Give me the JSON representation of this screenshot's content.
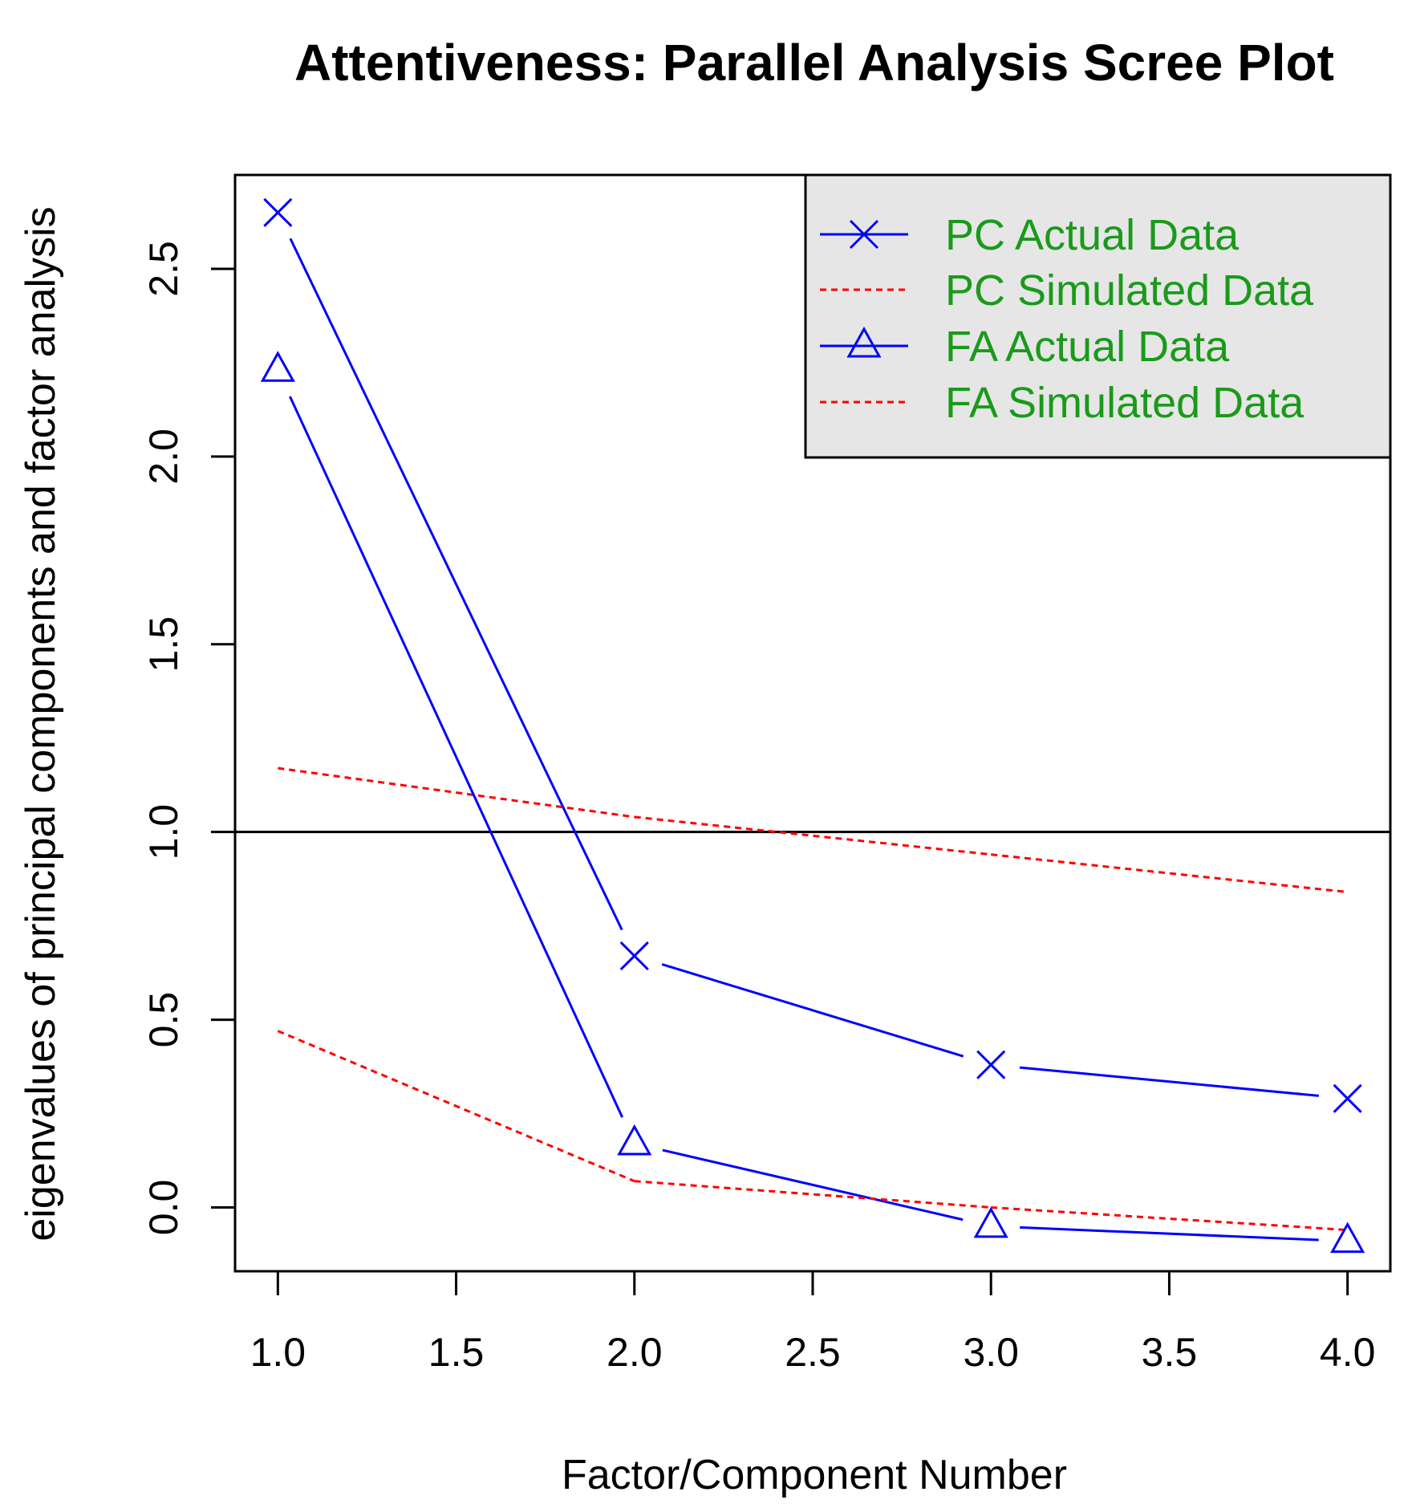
{
  "chart_data": {
    "type": "line",
    "title": "Attentiveness: Parallel Analysis Scree Plot",
    "xlabel": "Factor/Component Number",
    "ylabel": "eigenvalues of principal components and factor analysis",
    "xlim": [
      0.88,
      4.12
    ],
    "ylim": [
      -0.17,
      2.75
    ],
    "x_ticks": [
      1.0,
      1.5,
      2.0,
      2.5,
      3.0,
      3.5,
      4.0
    ],
    "x_tick_labels": [
      "1.0",
      "1.5",
      "2.0",
      "2.5",
      "3.0",
      "3.5",
      "4.0"
    ],
    "y_ticks": [
      0.0,
      0.5,
      1.0,
      1.5,
      2.0,
      2.5
    ],
    "y_tick_labels": [
      "0.0",
      "0.5",
      "1.0",
      "1.5",
      "2.0",
      "2.5"
    ],
    "reference_line": 1.0,
    "x": [
      1,
      2,
      3,
      4
    ],
    "series": [
      {
        "name": "PC Actual Data",
        "legend_label": "PC  Actual Data",
        "values": [
          2.65,
          0.67,
          0.38,
          0.29
        ],
        "color": "#0000ff",
        "style": "solid",
        "marker": "x"
      },
      {
        "name": "PC Simulated Data",
        "legend_label": " PC  Simulated Data",
        "values": [
          1.17,
          1.04,
          0.94,
          0.84
        ],
        "color": "#ff0000",
        "style": "dotted",
        "marker": "none"
      },
      {
        "name": "FA Actual Data",
        "legend_label": "FA  Actual Data",
        "values": [
          2.23,
          0.17,
          -0.05,
          -0.09
        ],
        "color": "#0000ff",
        "style": "solid",
        "marker": "triangle"
      },
      {
        "name": "FA Simulated Data",
        "legend_label": " FA  Simulated Data",
        "values": [
          0.47,
          0.07,
          0.0,
          -0.06
        ],
        "color": "#ff0000",
        "style": "dotted",
        "marker": "none"
      }
    ],
    "legend": {
      "position": "top-right",
      "background": "#e6e6e6",
      "text_color": "#1a9a1a"
    }
  }
}
